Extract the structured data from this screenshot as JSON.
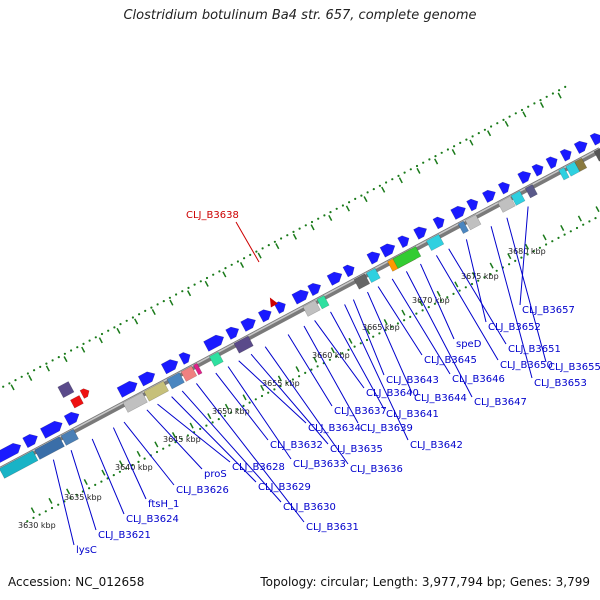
{
  "title": "Clostridium botulinum Ba4 str. 657, complete genome",
  "accession": "Accession: NC_012658",
  "summary": "Topology: circular; Length: 3,977,794 bp; Genes: 3,799",
  "colors": {
    "backbone": "#8c8c8c",
    "gene_forward": "#1a1aff",
    "highlight": "#cc0000",
    "ticks": "#1a7a1a"
  },
  "ticks": [
    "3630 kbp",
    "3635 kbp",
    "3640 kbp",
    "3645 kbp",
    "3650 kbp",
    "3655 kbp",
    "3660 kbp",
    "3665 kbp",
    "3670 kbp",
    "3675 kbp",
    "3680 kbp"
  ],
  "highlight_gene": "CLJ_B3638",
  "gene_labels": [
    "lysC",
    "CLJ_B3621",
    "CLJ_B3624",
    "ftsH_1",
    "CLJ_B3626",
    "proS",
    "CLJ_B3628",
    "CLJ_B3629",
    "CLJ_B3630",
    "CLJ_B3631",
    "CLJ_B3632",
    "CLJ_B3633",
    "CLJ_B3634",
    "CLJ_B3635",
    "CLJ_B3636",
    "CLJ_B3637",
    "CLJ_B3639",
    "CLJ_B3640",
    "CLJ_B3641",
    "CLJ_B3642",
    "CLJ_B3643",
    "CLJ_B3644",
    "CLJ_B3645",
    "CLJ_B3646",
    "CLJ_B3647",
    "speD",
    "CLJ_B3650",
    "CLJ_B3651",
    "CLJ_B3652",
    "CLJ_B3653",
    "CLJ_B3655",
    "CLJ_B3657"
  ]
}
